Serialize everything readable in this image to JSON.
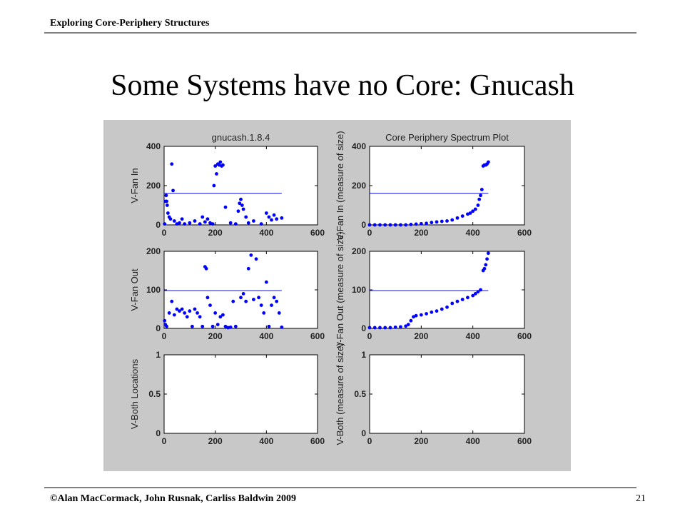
{
  "slide": {
    "header": "Exploring Core-Periphery Structures",
    "title": "Some Systems have no Core: Gnucash",
    "footer": "©Alan MacCormack, John Rusnak, Carliss Baldwin 2009",
    "page_number": "21"
  },
  "chart_data": [
    {
      "type": "scatter",
      "title": "gnucash.1.8.4",
      "y_label": "V-Fan In",
      "xlim": [
        0,
        600
      ],
      "ylim": [
        0,
        400
      ],
      "xticks": [
        0,
        200,
        400,
        600
      ],
      "yticks": [
        0,
        200,
        400
      ],
      "x": [
        2,
        5,
        8,
        10,
        12,
        15,
        20,
        25,
        30,
        35,
        40,
        50,
        60,
        70,
        80,
        100,
        120,
        140,
        150,
        160,
        170,
        180,
        190,
        195,
        200,
        205,
        210,
        215,
        220,
        225,
        230,
        240,
        260,
        280,
        290,
        295,
        300,
        305,
        310,
        320,
        330,
        350,
        380,
        400,
        410,
        420,
        430,
        440,
        460
      ],
      "series": [
        {
          "color": "#0000ff",
          "values": [
            5,
            120,
            150,
            120,
            100,
            60,
            40,
            30,
            310,
            175,
            20,
            5,
            10,
            30,
            5,
            10,
            20,
            5,
            40,
            15,
            30,
            10,
            5,
            200,
            300,
            260,
            310,
            305,
            320,
            300,
            305,
            90,
            10,
            5,
            70,
            110,
            130,
            100,
            80,
            40,
            10,
            20,
            5,
            60,
            40,
            25,
            50,
            30,
            35
          ]
        }
      ],
      "reference_line": {
        "y": 160,
        "x": [
          0,
          460
        ]
      }
    },
    {
      "type": "scatter",
      "title": "Core Periphery Spectrum Plot",
      "y_label": "V-Fan In (measure of size)",
      "xlim": [
        0,
        600
      ],
      "ylim": [
        0,
        400
      ],
      "xticks": [
        0,
        200,
        400,
        600
      ],
      "yticks": [
        0,
        200,
        400
      ],
      "x": [
        0,
        20,
        40,
        60,
        80,
        100,
        120,
        140,
        160,
        180,
        200,
        220,
        240,
        260,
        280,
        300,
        320,
        340,
        360,
        380,
        390,
        400,
        410,
        420,
        425,
        430,
        435,
        440,
        445,
        450,
        455,
        460
      ],
      "series": [
        {
          "color": "#0000ff",
          "values": [
            0,
            0,
            0,
            0,
            0,
            0,
            0,
            0,
            2,
            4,
            6,
            8,
            12,
            15,
            18,
            20,
            25,
            35,
            45,
            55,
            60,
            70,
            80,
            100,
            130,
            150,
            180,
            300,
            305,
            305,
            310,
            320
          ]
        }
      ],
      "reference_line": {
        "y": 160,
        "x": [
          0,
          460
        ]
      }
    },
    {
      "type": "scatter",
      "y_label": "V-Fan Out",
      "xlim": [
        0,
        600
      ],
      "ylim": [
        0,
        200
      ],
      "xticks": [
        0,
        200,
        400,
        600
      ],
      "yticks": [
        0,
        100,
        200
      ],
      "x": [
        2,
        5,
        10,
        20,
        30,
        40,
        50,
        60,
        70,
        80,
        90,
        100,
        110,
        120,
        130,
        140,
        150,
        160,
        165,
        170,
        180,
        190,
        200,
        210,
        220,
        230,
        240,
        250,
        260,
        270,
        280,
        300,
        310,
        320,
        330,
        340,
        350,
        360,
        370,
        380,
        390,
        400,
        410,
        420,
        430,
        440,
        450,
        460
      ],
      "series": [
        {
          "color": "#0000ff",
          "values": [
            20,
            10,
            5,
            40,
            70,
            35,
            50,
            45,
            50,
            40,
            30,
            45,
            5,
            50,
            40,
            30,
            5,
            160,
            155,
            80,
            60,
            5,
            40,
            10,
            30,
            35,
            5,
            2,
            3,
            70,
            5,
            80,
            90,
            70,
            155,
            190,
            75,
            180,
            80,
            60,
            40,
            120,
            5,
            60,
            80,
            70,
            40,
            3
          ]
        }
      ],
      "reference_line": {
        "y": 98,
        "x": [
          0,
          460
        ]
      }
    },
    {
      "type": "scatter",
      "y_label": "V-Fan Out (measure of size)",
      "xlim": [
        0,
        600
      ],
      "ylim": [
        0,
        200
      ],
      "xticks": [
        0,
        200,
        400,
        600
      ],
      "yticks": [
        0,
        100,
        200
      ],
      "x": [
        0,
        20,
        40,
        60,
        80,
        100,
        120,
        140,
        150,
        160,
        170,
        180,
        200,
        220,
        240,
        260,
        280,
        300,
        320,
        340,
        360,
        380,
        400,
        410,
        420,
        430,
        440,
        445,
        450,
        455,
        460
      ],
      "series": [
        {
          "color": "#0000ff",
          "values": [
            2,
            2,
            2,
            2,
            2,
            3,
            4,
            6,
            10,
            20,
            30,
            33,
            35,
            38,
            42,
            45,
            50,
            55,
            65,
            70,
            75,
            80,
            85,
            90,
            95,
            100,
            150,
            155,
            165,
            180,
            195
          ]
        }
      ],
      "reference_line": {
        "y": 98,
        "x": [
          0,
          460
        ]
      }
    },
    {
      "type": "scatter",
      "y_label": "V-Both Locations",
      "xlim": [
        0,
        600
      ],
      "ylim": [
        0,
        1
      ],
      "xticks": [
        0,
        200,
        400,
        600
      ],
      "yticks": [
        0,
        0.5,
        1
      ]
    },
    {
      "type": "scatter",
      "y_label": "V-Both (measure of size)",
      "xlim": [
        0,
        600
      ],
      "ylim": [
        0,
        1
      ],
      "xticks": [
        0,
        200,
        400,
        600
      ],
      "yticks": [
        0,
        0.5,
        1
      ]
    }
  ]
}
